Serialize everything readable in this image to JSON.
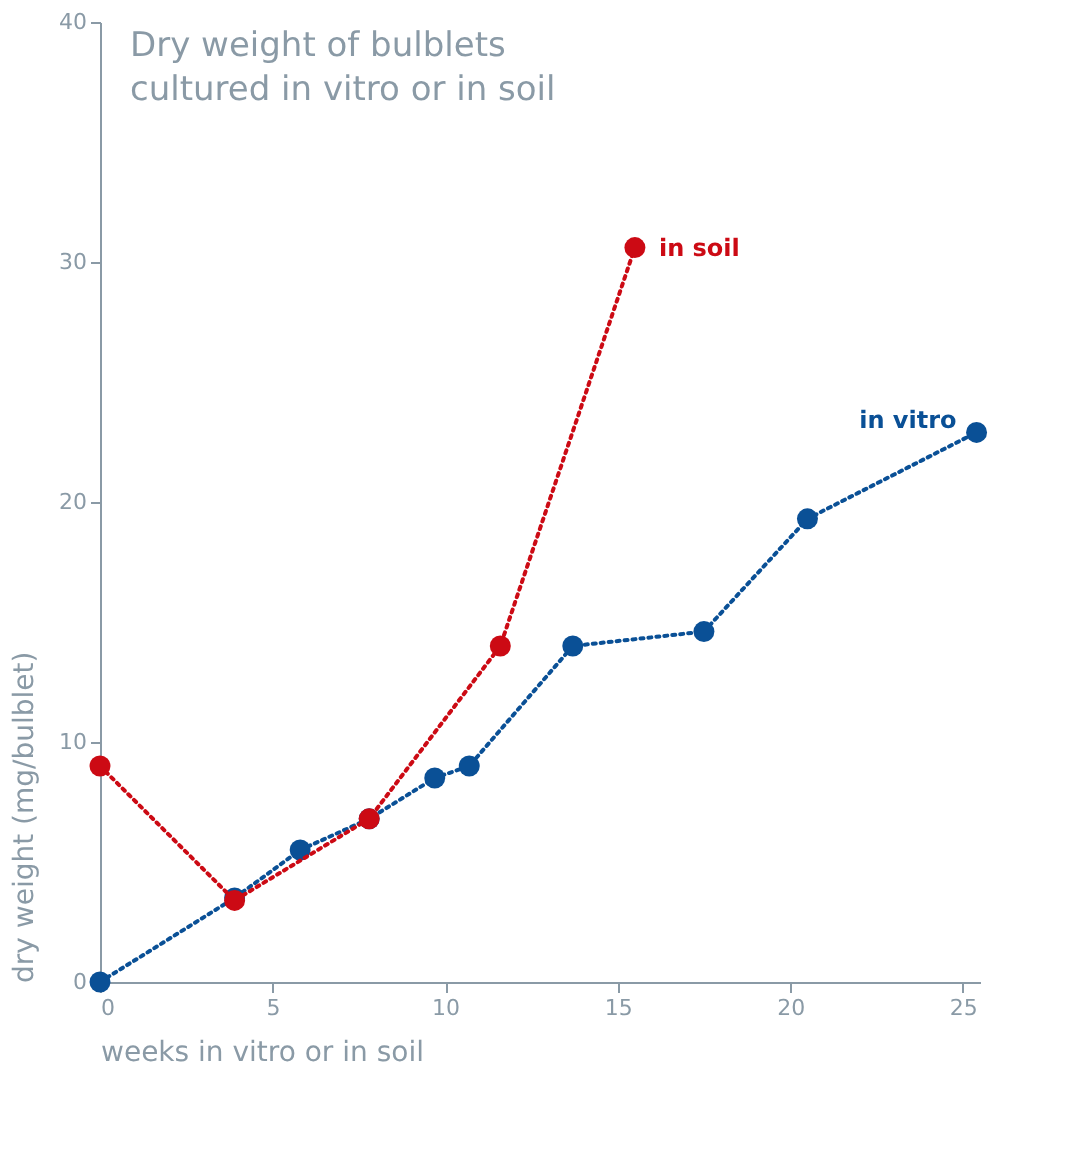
{
  "chart_data": {
    "type": "line",
    "title": "Dry weight of bulblets cultured in vitro or in soil",
    "xlabel": "weeks in vitro or in soil",
    "ylabel": "dry weight (mg/bulblet)",
    "xlim": [
      0,
      25.5
    ],
    "ylim": [
      0,
      40
    ],
    "xticks": [
      0,
      5,
      10,
      15,
      20,
      25
    ],
    "yticks": [
      0,
      10,
      20,
      30,
      40
    ],
    "grid": false,
    "legend": false,
    "marker": "circle",
    "line_style": "dotted",
    "series": [
      {
        "name": "in soil",
        "color": "#cc0a14",
        "x": [
          0,
          3.9,
          7.8,
          11.6,
          15.5
        ],
        "values": [
          9.0,
          3.4,
          6.8,
          14.0,
          30.6
        ]
      },
      {
        "name": "in vitro",
        "color": "#0a5096",
        "x": [
          0,
          3.9,
          5.8,
          7.8,
          9.7,
          10.7,
          13.7,
          17.5,
          20.5,
          25.4
        ],
        "values": [
          0,
          3.5,
          5.5,
          6.8,
          8.5,
          9.0,
          14.0,
          14.6,
          19.3,
          22.9
        ]
      }
    ]
  }
}
